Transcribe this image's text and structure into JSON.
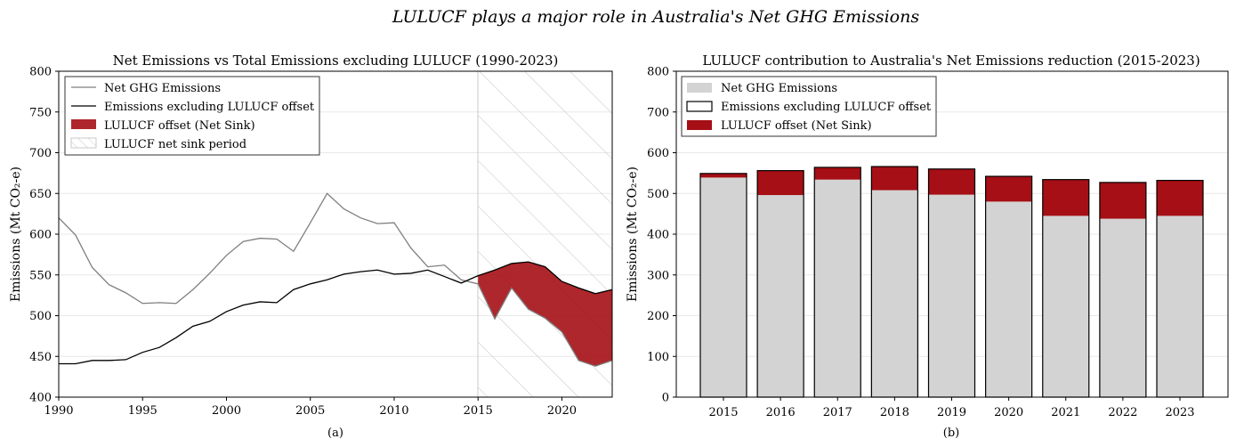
{
  "figure_title": "LULUCF plays a major role in Australia's Net GHG Emissions",
  "colors": {
    "net_line": "#7f7f7f",
    "excl_line": "#000000",
    "offset_fill": "#a50f15",
    "bar_net": "#d3d3d3",
    "bar_edge": "#000000",
    "hatch": "#c8c8c8",
    "grid": "#e8e8e8"
  },
  "chart_data": [
    {
      "type": "line",
      "title": "Net Emissions vs Total Emissions excluding LULUCF (1990-2023)",
      "subcaption": "(a)",
      "xlabel": "",
      "ylabel": "Emissions (Mt CO₂-e)",
      "xlim": [
        1990,
        2023
      ],
      "ylim": [
        400,
        800
      ],
      "xticks": [
        "1990",
        "1995",
        "2000",
        "2005",
        "2010",
        "2015",
        "2020"
      ],
      "yticks": [
        "400",
        "450",
        "500",
        "550",
        "600",
        "650",
        "700",
        "750",
        "800"
      ],
      "grid": "y",
      "legend_position": "top-left",
      "x": [
        1990,
        1991,
        1992,
        1993,
        1994,
        1995,
        1996,
        1997,
        1998,
        1999,
        2000,
        2001,
        2002,
        2003,
        2004,
        2005,
        2006,
        2007,
        2008,
        2009,
        2010,
        2011,
        2012,
        2013,
        2014,
        2015,
        2016,
        2017,
        2018,
        2019,
        2020,
        2021,
        2022,
        2023
      ],
      "series": [
        {
          "name": "Net GHG Emissions",
          "values": [
            620,
            599,
            559,
            538,
            528,
            515,
            516,
            515,
            532,
            552,
            574,
            591,
            595,
            594,
            579,
            614,
            650,
            631,
            620,
            613,
            614,
            583,
            560,
            562,
            544,
            539,
            496,
            534,
            508,
            497,
            480,
            445,
            438,
            445
          ]
        },
        {
          "name": "Emissions excluding LULUCF offset",
          "values": [
            441,
            441,
            445,
            445,
            446,
            455,
            461,
            473,
            487,
            493,
            505,
            513,
            517,
            516,
            532,
            539,
            544,
            551,
            554,
            556,
            551,
            552,
            556,
            548,
            540,
            549,
            556,
            564,
            566,
            560,
            542,
            534,
            527,
            532
          ]
        }
      ],
      "legend": [
        {
          "label": "Net GHG Emissions",
          "kind": "line"
        },
        {
          "label": "Emissions excluding LULUCF offset",
          "kind": "line"
        },
        {
          "label": "LULUCF offset (Net Sink)",
          "kind": "fill"
        },
        {
          "label": "LULUCF net sink period",
          "kind": "hatch"
        }
      ],
      "fill_between": {
        "label": "LULUCF offset (Net Sink)",
        "from": 2015,
        "to": 2023
      },
      "shaded_region": {
        "label": "LULUCF net sink period",
        "from": 2015,
        "to": 2023,
        "style": "hatch"
      }
    },
    {
      "type": "bar",
      "title": "LULUCF contribution to Australia's Net Emissions reduction (2015-2023)",
      "subcaption": "(b)",
      "xlabel": "",
      "ylabel": "Emissions (Mt CO₂-e)",
      "ylim": [
        0,
        800
      ],
      "yticks": [
        "0",
        "100",
        "200",
        "300",
        "400",
        "500",
        "600",
        "700",
        "800"
      ],
      "grid": "y",
      "legend_position": "top-left",
      "categories": [
        "2015",
        "2016",
        "2017",
        "2018",
        "2019",
        "2020",
        "2021",
        "2022",
        "2023"
      ],
      "series": [
        {
          "name": "Net GHG Emissions",
          "values": [
            539,
            496,
            534,
            508,
            497,
            480,
            445,
            438,
            445
          ]
        },
        {
          "name": "Emissions excluding LULUCF offset",
          "values": [
            549,
            556,
            564,
            566,
            560,
            542,
            534,
            527,
            532
          ]
        },
        {
          "name": "LULUCF offset (Net Sink)",
          "values": [
            10,
            60,
            30,
            58,
            63,
            62,
            89,
            89,
            87
          ]
        }
      ],
      "legend": [
        {
          "label": "Net GHG Emissions",
          "kind": "box-fill"
        },
        {
          "label": "Emissions excluding LULUCF offset",
          "kind": "box-outline"
        },
        {
          "label": "LULUCF offset (Net Sink)",
          "kind": "box-red"
        }
      ]
    }
  ]
}
